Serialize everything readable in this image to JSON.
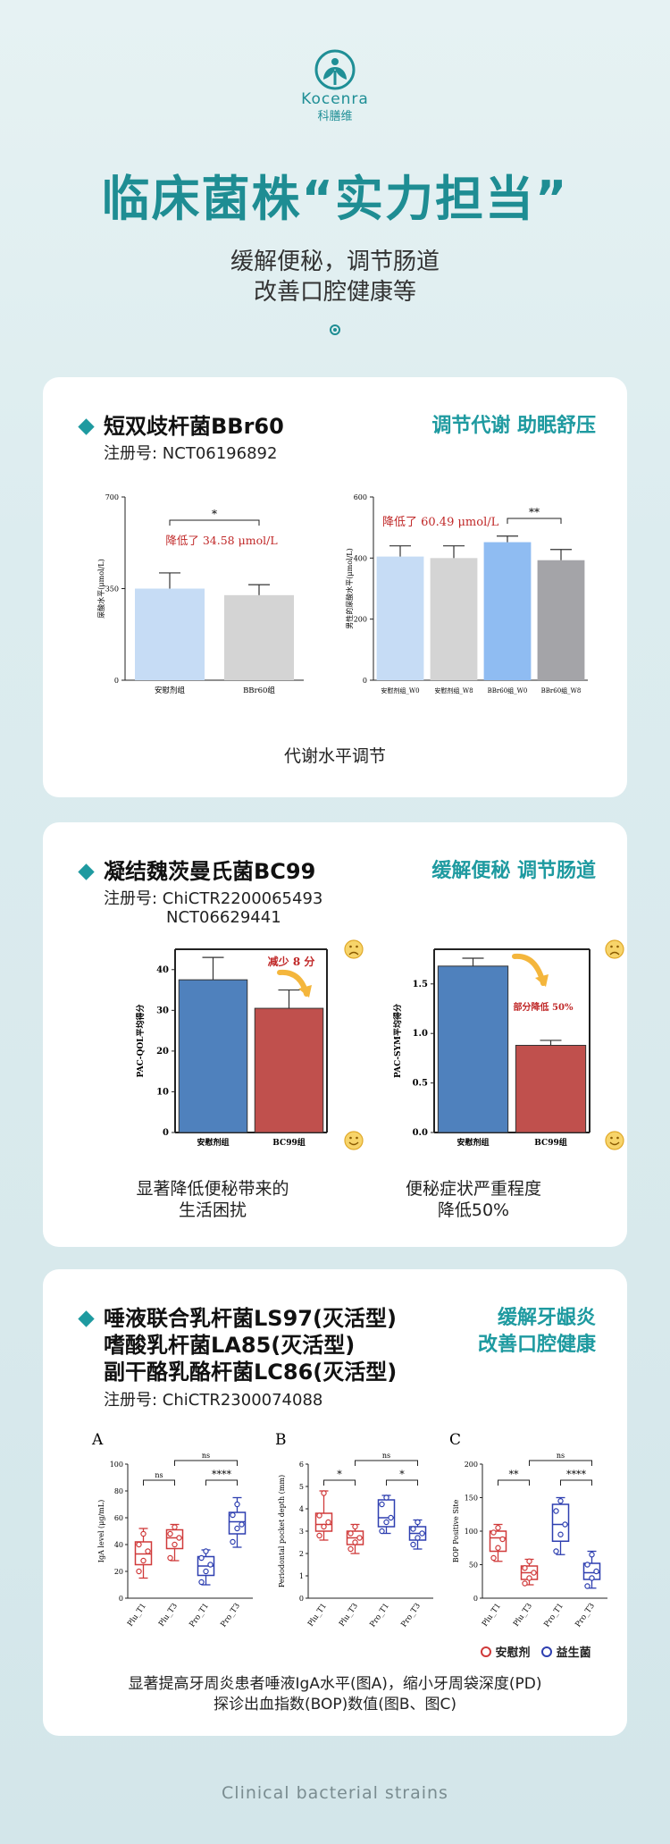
{
  "brand": {
    "name_en": "Kocenra",
    "name_cn": "科膳维",
    "color": "#1f8f96"
  },
  "headline": "临床菌株“实力担当”",
  "subtitle_lines": [
    "缓解便秘，调节肠道",
    "改善口腔健康等"
  ],
  "footer": "Clinical bacterial strains",
  "sections": [
    {
      "strain": "短双歧杆菌BBr60",
      "registration": "注册号: NCT06196892",
      "tag": "调节代谢 助眠舒压",
      "caption": "代谢水平调节"
    },
    {
      "strain": "凝结魏茨曼氏菌BC99",
      "registration_lines": [
        "注册号: ChiCTR2200065493",
        "NCT06629441"
      ],
      "tag": "缓解便秘 调节肠道",
      "captions": [
        [
          "显著降低便秘带来的",
          "生活困扰"
        ],
        [
          "便秘症状严重程度",
          "降低50%"
        ]
      ]
    },
    {
      "strain_lines": [
        "唾液联合乳杆菌LS97(灭活型)",
        "嗜酸乳杆菌LA85(灭活型)",
        "副干酪乳酪杆菌LC86(灭活型)"
      ],
      "registration": "注册号: ChiCTR2300074088",
      "tag_lines": [
        "缓解牙龈炎",
        "改善口腔健康"
      ],
      "caption_lines": [
        "显著提高牙周炎患者唾液IgA水平(图A)，缩小牙周袋深度(PD)",
        "探诊出血指数(BOP)数值(图B、图C)"
      ],
      "legend": [
        {
          "label": "安慰剂",
          "color": "#d03a3a"
        },
        {
          "label": "益生菌",
          "color": "#2e3fb0"
        }
      ]
    }
  ],
  "chart_data": [
    {
      "type": "bar",
      "categories": [
        "安慰剂组",
        "BBr60组"
      ],
      "values": [
        350,
        325
      ],
      "errors": [
        60,
        40
      ],
      "ylabel": "尿酸水平(μmol/L)",
      "ylim": [
        0,
        700
      ],
      "yticks": [
        0,
        350,
        700
      ],
      "colors": [
        "#c6dcf5",
        "#d4d4d4"
      ],
      "significance": "*",
      "annotation": "降低了 34.58 μmol/L"
    },
    {
      "type": "bar",
      "categories": [
        "安慰剂组_W0",
        "安慰剂组_W8",
        "BBr60组_W0",
        "BBr60组_W8"
      ],
      "values": [
        405,
        400,
        452,
        393
      ],
      "errors": [
        35,
        40,
        20,
        35
      ],
      "ylabel": "男性的尿酸水平(μmol/L)",
      "ylim": [
        0,
        600
      ],
      "yticks": [
        0,
        200,
        400,
        600
      ],
      "colors": [
        "#c6dcf5",
        "#d4d4d4",
        "#8fbcf2",
        "#a4a4a8"
      ],
      "significance": "**",
      "annotation": "降低了 60.49 μmol/L"
    },
    {
      "type": "bar",
      "categories": [
        "安慰剂组",
        "BC99组"
      ],
      "values": [
        37.5,
        30.5
      ],
      "errors": [
        5.5,
        4.5
      ],
      "ylabel": "PAC-QOL平均得分",
      "ylim": [
        0,
        45
      ],
      "yticks": [
        0,
        10,
        20,
        30,
        40
      ],
      "colors": [
        "#4f81bd",
        "#c0504d"
      ],
      "annotation": "减少 8 分"
    },
    {
      "type": "bar",
      "categories": [
        "安慰剂组",
        "BC99组"
      ],
      "values": [
        1.68,
        0.88
      ],
      "errors": [
        0.08,
        0.05
      ],
      "ylabel": "PAC-SYM平均得分",
      "ylim": [
        0,
        1.85
      ],
      "yticks": [
        0.0,
        0.5,
        1.0,
        1.5
      ],
      "colors": [
        "#4f81bd",
        "#c0504d"
      ],
      "annotation": "部分降低 50%"
    },
    {
      "type": "box",
      "panel": "A",
      "categories": [
        "Plu_T1",
        "Plu_T3",
        "Pro_T1",
        "Pro_T3"
      ],
      "ylabel": "IgA level (μg/mL)",
      "ylim": [
        0,
        100
      ],
      "yticks": [
        0,
        20,
        40,
        60,
        80,
        100
      ],
      "boxes": [
        {
          "min": 15,
          "q1": 25,
          "median": 33,
          "q3": 42,
          "max": 52
        },
        {
          "min": 28,
          "q1": 37,
          "median": 45,
          "q3": 51,
          "max": 55
        },
        {
          "min": 10,
          "q1": 17,
          "median": 24,
          "q3": 31,
          "max": 36
        },
        {
          "min": 38,
          "q1": 48,
          "median": 57,
          "q3": 64,
          "max": 75
        }
      ],
      "points": [
        [
          20,
          28,
          35,
          40,
          48
        ],
        [
          30,
          40,
          45,
          48,
          53
        ],
        [
          12,
          20,
          25,
          30,
          35
        ],
        [
          42,
          52,
          55,
          62,
          70
        ]
      ],
      "significance": [
        {
          "pair": [
            0,
            1
          ],
          "label": "ns"
        },
        {
          "pair": [
            2,
            3
          ],
          "label": "****"
        },
        {
          "pair": [
            1,
            3
          ],
          "label": "ns"
        }
      ]
    },
    {
      "type": "box",
      "panel": "B",
      "categories": [
        "Plu_T1",
        "Plu_T3",
        "Pro_T1",
        "Pro_T3"
      ],
      "ylabel": "Periodontal pocket depth (mm)",
      "ylim": [
        0,
        6
      ],
      "yticks": [
        0,
        1,
        2,
        3,
        4,
        5,
        6
      ],
      "boxes": [
        {
          "min": 2.6,
          "q1": 3.0,
          "median": 3.3,
          "q3": 3.8,
          "max": 4.8
        },
        {
          "min": 2.0,
          "q1": 2.4,
          "median": 2.7,
          "q3": 3.0,
          "max": 3.3
        },
        {
          "min": 2.9,
          "q1": 3.2,
          "median": 3.6,
          "q3": 4.4,
          "max": 4.6
        },
        {
          "min": 2.2,
          "q1": 2.6,
          "median": 2.9,
          "q3": 3.2,
          "max": 3.5
        }
      ],
      "points": [
        [
          2.8,
          3.2,
          3.4,
          3.7,
          4.7
        ],
        [
          2.2,
          2.5,
          2.7,
          2.9,
          3.2
        ],
        [
          3.0,
          3.4,
          3.6,
          4.2,
          4.5
        ],
        [
          2.4,
          2.7,
          2.9,
          3.1,
          3.4
        ]
      ],
      "significance": [
        {
          "pair": [
            0,
            1
          ],
          "label": "*"
        },
        {
          "pair": [
            2,
            3
          ],
          "label": "*"
        },
        {
          "pair": [
            1,
            3
          ],
          "label": "ns"
        }
      ]
    },
    {
      "type": "box",
      "panel": "C",
      "categories": [
        "Plu_T1",
        "Plu_T3",
        "Pro_T1",
        "Pro_T3"
      ],
      "ylabel": "BOP Positive Site",
      "ylim": [
        0,
        200
      ],
      "yticks": [
        0,
        50,
        100,
        150,
        200
      ],
      "boxes": [
        {
          "min": 55,
          "q1": 70,
          "median": 90,
          "q3": 100,
          "max": 110
        },
        {
          "min": 20,
          "q1": 28,
          "median": 38,
          "q3": 48,
          "max": 58
        },
        {
          "min": 65,
          "q1": 85,
          "median": 110,
          "q3": 140,
          "max": 150
        },
        {
          "min": 15,
          "q1": 28,
          "median": 38,
          "q3": 52,
          "max": 70
        }
      ],
      "points": [
        [
          60,
          75,
          88,
          98,
          105
        ],
        [
          22,
          30,
          38,
          45,
          55
        ],
        [
          70,
          95,
          110,
          130,
          145
        ],
        [
          18,
          30,
          40,
          50,
          65
        ]
      ],
      "significance": [
        {
          "pair": [
            0,
            1
          ],
          "label": "**"
        },
        {
          "pair": [
            2,
            3
          ],
          "label": "****"
        },
        {
          "pair": [
            1,
            3
          ],
          "label": "ns"
        }
      ]
    }
  ]
}
